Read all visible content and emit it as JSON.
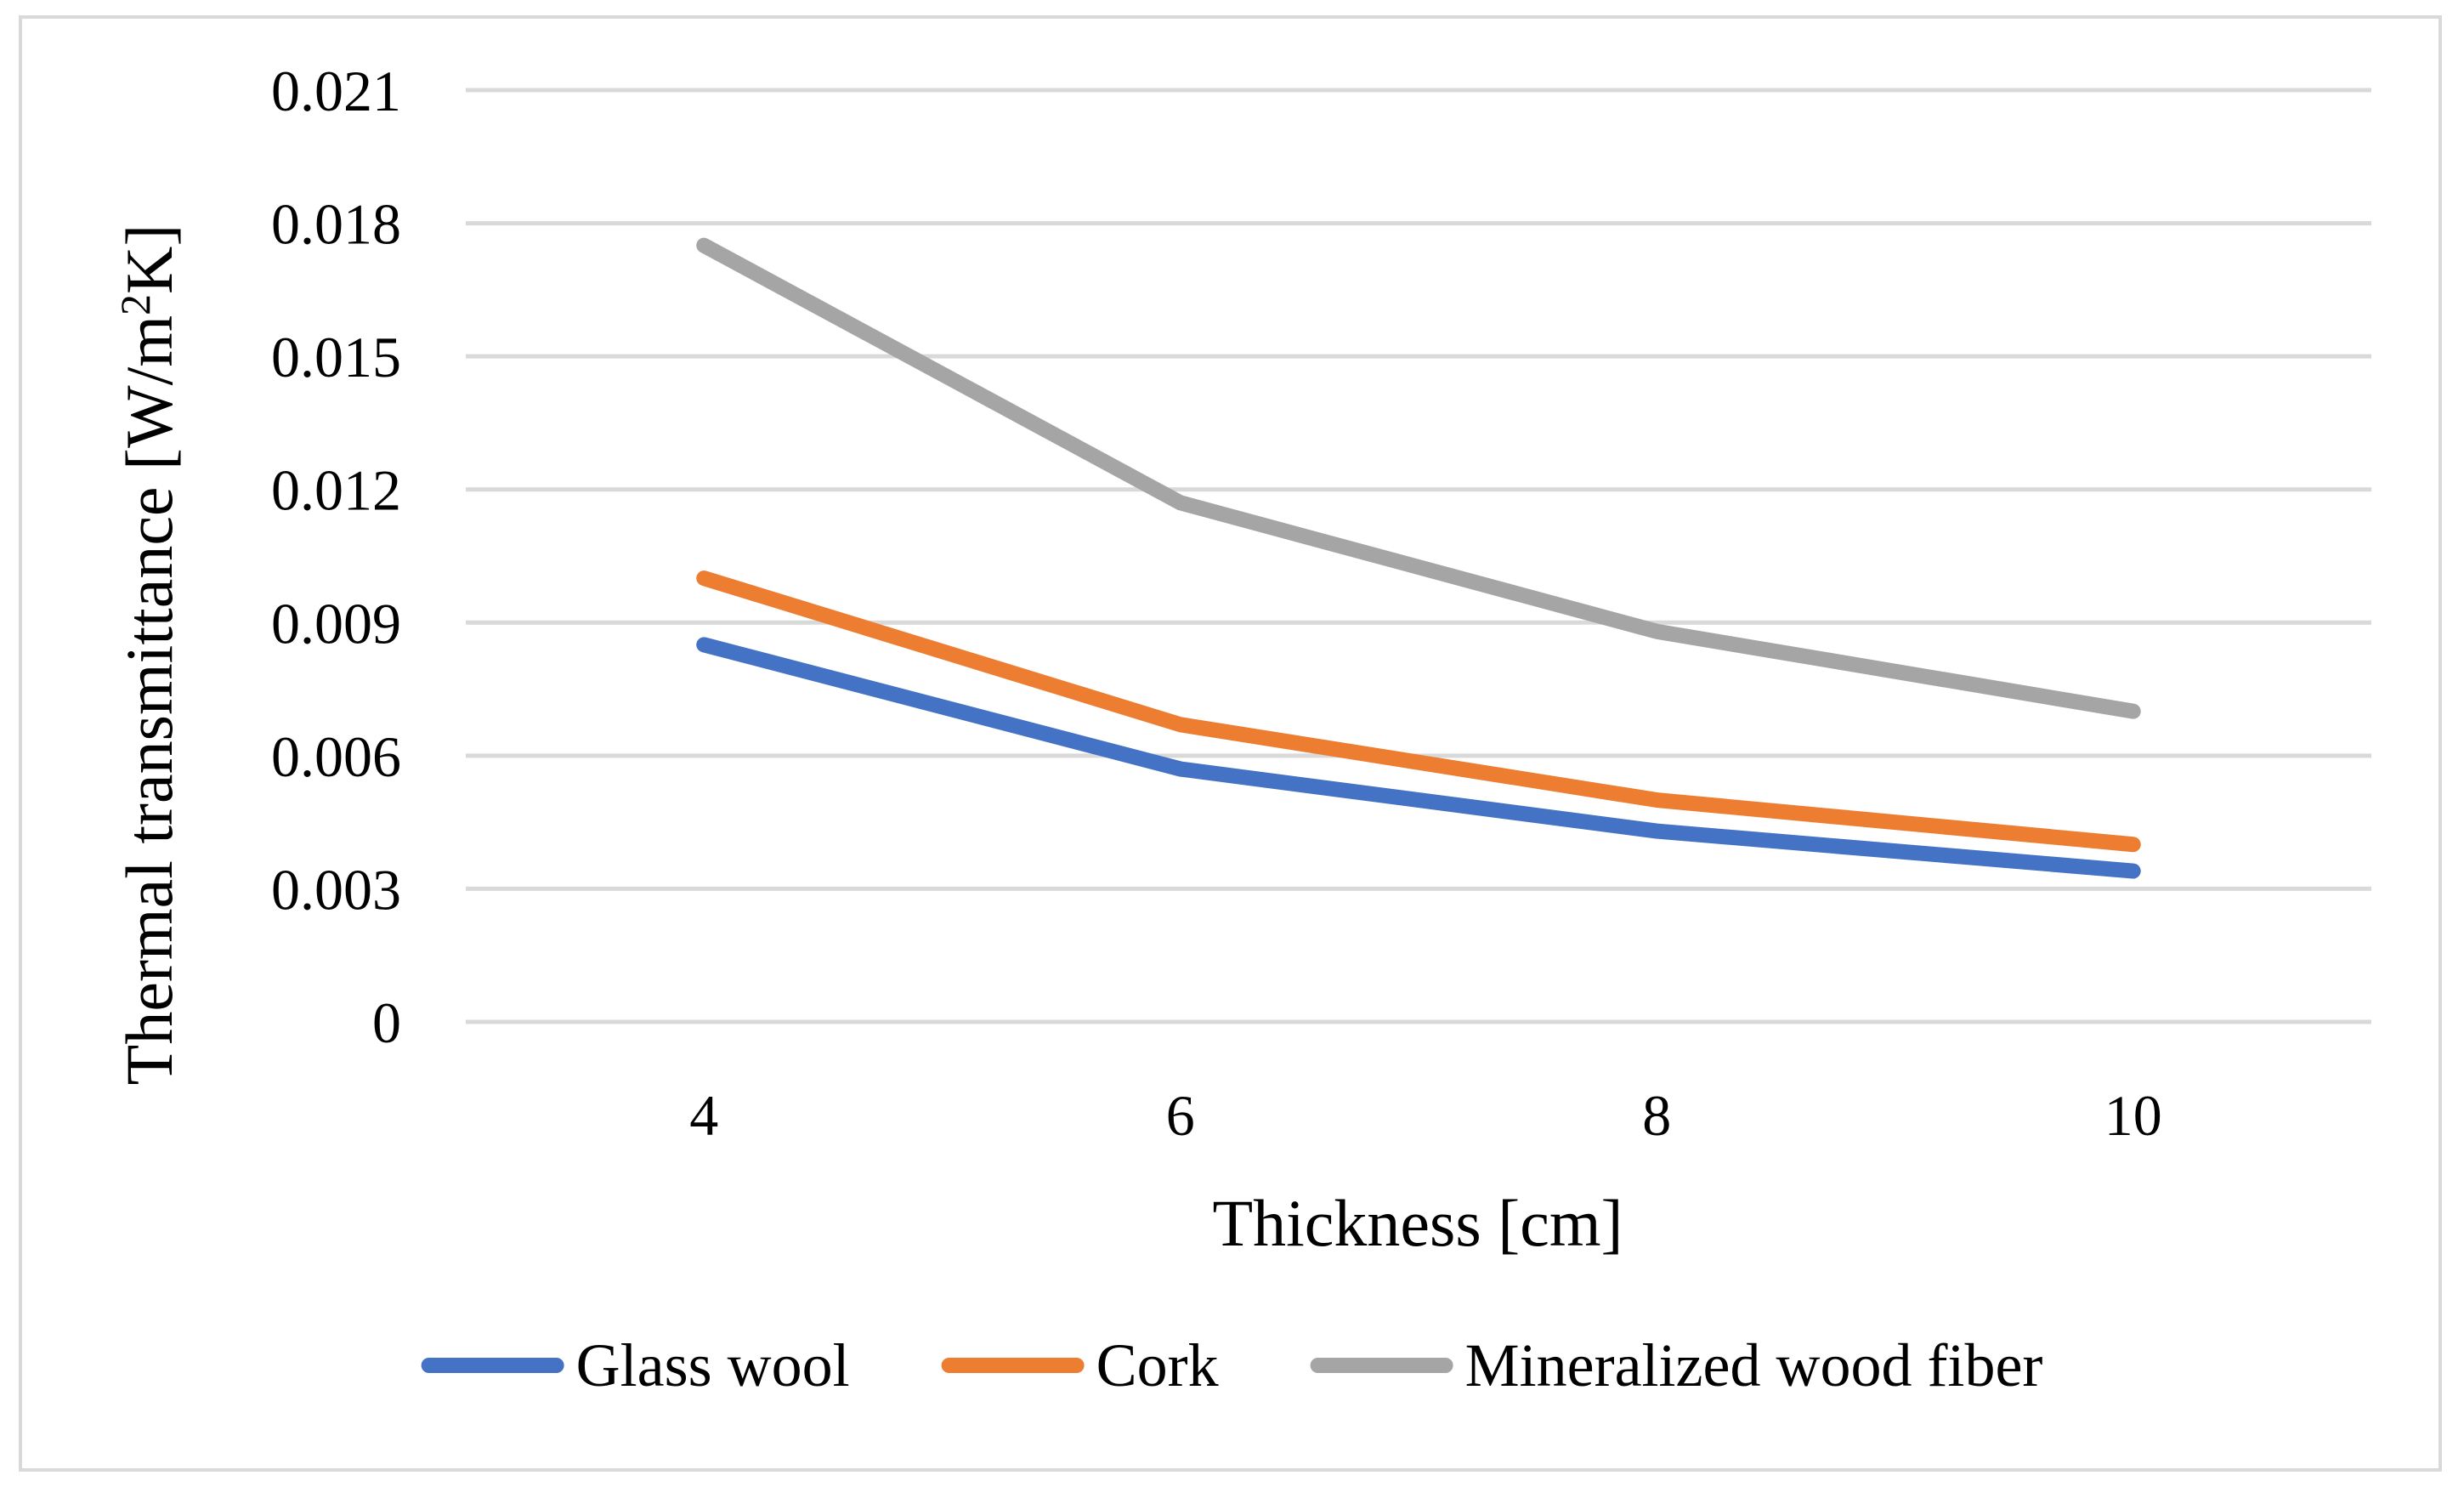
{
  "chart_data": {
    "type": "line",
    "title": "",
    "xlabel": "Thickness [cm]",
    "ylabel_main": "Thermal transmittance [W/m",
    "ylabel_sup": "2",
    "ylabel_tail": "K]",
    "categories": [
      "4",
      "6",
      "8",
      "10"
    ],
    "yticks": [
      "0",
      "0.003",
      "0.006",
      "0.009",
      "0.012",
      "0.015",
      "0.018",
      "0.021"
    ],
    "ylim": [
      0,
      0.021
    ],
    "grid": true,
    "legend_position": "bottom",
    "series": [
      {
        "name": "Glass wool",
        "color": "#4472c4",
        "values": [
          0.0085,
          0.0057,
          0.0043,
          0.0034
        ]
      },
      {
        "name": "Cork",
        "color": "#ed7d31",
        "values": [
          0.01,
          0.0067,
          0.005,
          0.004
        ]
      },
      {
        "name": "Mineralized wood fiber",
        "color": "#a5a5a5",
        "values": [
          0.0175,
          0.0117,
          0.0088,
          0.007
        ]
      }
    ]
  }
}
